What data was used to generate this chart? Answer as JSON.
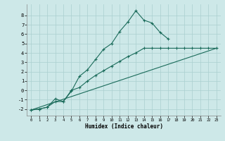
{
  "xlabel": "Humidex (Indice chaleur)",
  "bg_color": "#cde8e8",
  "grid_color": "#aacfcf",
  "line_color": "#1a6b5a",
  "xlim": [
    -0.5,
    23.5
  ],
  "ylim": [
    -2.7,
    9.2
  ],
  "yticks": [
    -2,
    -1,
    0,
    1,
    2,
    3,
    4,
    5,
    6,
    7,
    8
  ],
  "xticks": [
    0,
    1,
    2,
    3,
    4,
    5,
    6,
    7,
    8,
    9,
    10,
    11,
    12,
    13,
    14,
    15,
    16,
    17,
    18,
    19,
    20,
    21,
    22,
    23
  ],
  "curve1_x": [
    0,
    1,
    2,
    3,
    4,
    5,
    6,
    7,
    8,
    9,
    10,
    11,
    12,
    13,
    14,
    15,
    16,
    17
  ],
  "curve1_y": [
    -2.1,
    -2.0,
    -1.8,
    -0.9,
    -1.2,
    -0.1,
    1.5,
    2.2,
    3.3,
    4.4,
    5.0,
    6.3,
    7.3,
    8.5,
    7.5,
    7.2,
    6.2,
    5.5
  ],
  "curve2_x": [
    0,
    23
  ],
  "curve2_y": [
    -2.1,
    4.5
  ],
  "curve3_x": [
    0,
    1,
    2,
    3,
    4,
    5,
    6,
    7,
    8,
    9,
    10,
    11,
    12,
    13,
    14,
    15,
    16,
    17,
    18,
    19,
    20,
    21,
    22,
    23
  ],
  "curve3_y": [
    -2.1,
    -2.0,
    -1.8,
    -1.2,
    -1.2,
    0.0,
    0.3,
    1.0,
    1.6,
    2.1,
    2.6,
    3.1,
    3.6,
    4.0,
    4.5,
    4.5,
    4.5,
    4.5,
    4.5,
    4.5,
    4.5,
    4.5,
    4.5,
    4.5
  ]
}
